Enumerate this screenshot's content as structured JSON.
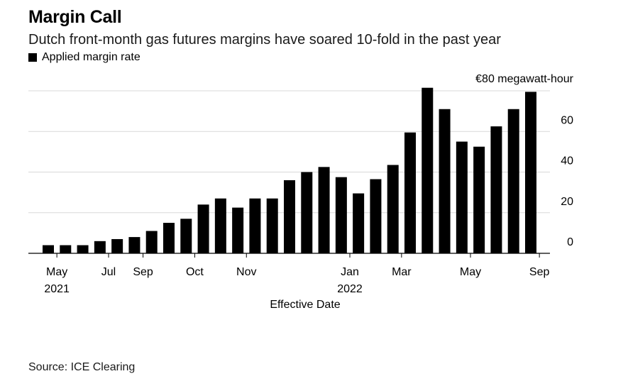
{
  "header": {
    "title": "Margin Call",
    "subtitle": "Dutch front-month gas futures margins have soared 10-fold in the past year"
  },
  "legend": {
    "label": "Applied margin rate"
  },
  "footer": {
    "source": "Source: ICE Clearing"
  },
  "colors": {
    "bar": "#000000",
    "grid": "#d9d9d9",
    "axis": "#000000"
  },
  "chart_data": {
    "type": "bar",
    "xlabel": "Effective Date",
    "y_unit_label": "€80 megawatt-hour",
    "ylim": [
      0,
      80
    ],
    "yticks": [
      {
        "value": 0,
        "label": "0"
      },
      {
        "value": 20,
        "label": "20"
      },
      {
        "value": 40,
        "label": "40"
      },
      {
        "value": 60,
        "label": "60"
      },
      {
        "value": 80,
        "label": "€80 megawatt-hour"
      }
    ],
    "x_tick_labels": [
      {
        "index": 0.5,
        "label": "May",
        "sublabel": "2021"
      },
      {
        "index": 3.5,
        "label": "Jul"
      },
      {
        "index": 5.5,
        "label": "Sep"
      },
      {
        "index": 8.5,
        "label": "Oct"
      },
      {
        "index": 11.5,
        "label": "Nov"
      },
      {
        "index": 17.5,
        "label": "Jan",
        "sublabel": "2022"
      },
      {
        "index": 20.5,
        "label": "Mar"
      },
      {
        "index": 24.5,
        "label": "May"
      },
      {
        "index": 28.5,
        "label": "Sep"
      }
    ],
    "values": [
      4,
      4,
      4,
      6,
      7,
      8,
      11,
      15,
      17,
      24,
      27,
      22.5,
      27,
      27,
      36,
      40,
      42.5,
      37.5,
      29.5,
      36.5,
      43.5,
      59.5,
      81.5,
      71,
      55,
      52.5,
      62.5,
      71,
      79.5
    ],
    "grid": true,
    "legend_position": "top-left"
  }
}
